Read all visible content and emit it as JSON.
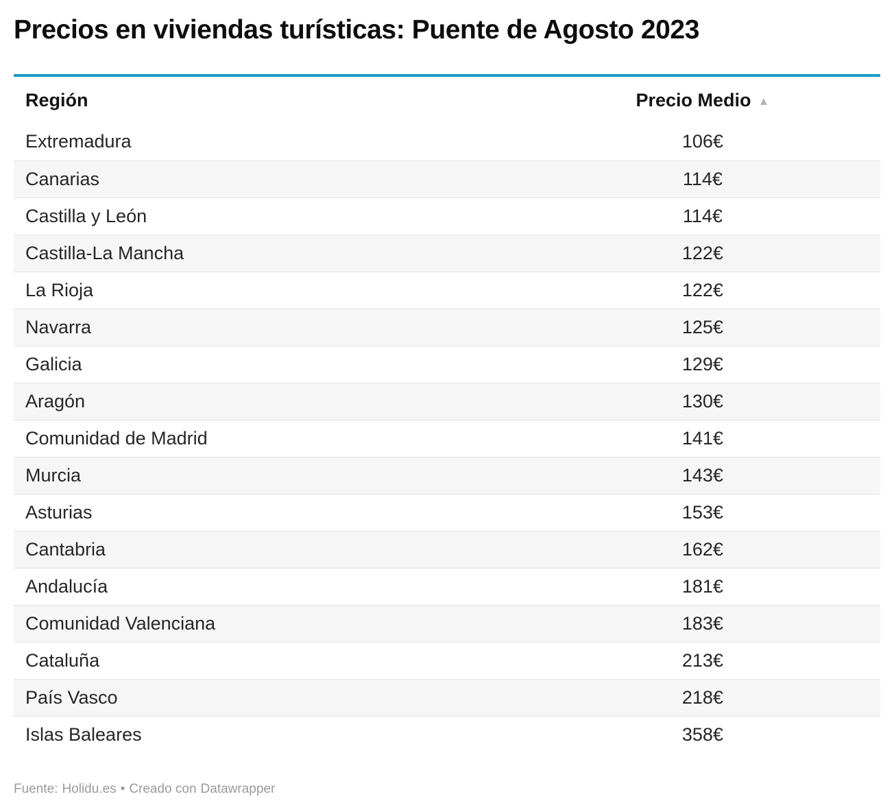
{
  "title": "Precios en viviendas turísticas: Puente de Agosto 2023",
  "colors": {
    "accent_rule": "#1a9bc8",
    "stripe": "#f6f6f6",
    "row_border": "#e3e3e3",
    "text": "#262626",
    "muted": "#9b9b9b"
  },
  "table": {
    "columns": [
      {
        "label": "Región"
      },
      {
        "label": "Precio Medio"
      }
    ],
    "sort_icon": "▲",
    "rows": [
      {
        "region": "Extremadura",
        "price": "106€"
      },
      {
        "region": "Canarias",
        "price": "114€"
      },
      {
        "region": "Castilla y León",
        "price": "114€"
      },
      {
        "region": "Castilla-La Mancha",
        "price": "122€"
      },
      {
        "region": "La Rioja",
        "price": "122€"
      },
      {
        "region": "Navarra",
        "price": "125€"
      },
      {
        "region": "Galicia",
        "price": "129€"
      },
      {
        "region": "Aragón",
        "price": "130€"
      },
      {
        "region": "Comunidad de Madrid",
        "price": "141€"
      },
      {
        "region": "Murcia",
        "price": "143€"
      },
      {
        "region": "Asturias",
        "price": "153€"
      },
      {
        "region": "Cantabria",
        "price": "162€"
      },
      {
        "region": "Andalucía",
        "price": "181€"
      },
      {
        "region": "Comunidad Valenciana",
        "price": "183€"
      },
      {
        "region": "Cataluña",
        "price": "213€"
      },
      {
        "region": "País Vasco",
        "price": "218€"
      },
      {
        "region": "Islas Baleares",
        "price": "358€"
      }
    ]
  },
  "footer": {
    "source_label": "Fuente:",
    "source_link": "Holidu.es",
    "separator": "•",
    "attribution_prefix": "Creado con",
    "attribution_link": "Datawrapper"
  },
  "chart_data": {
    "type": "table",
    "title": "Precios en viviendas turísticas: Puente de Agosto 2023",
    "columns": [
      "Región",
      "Precio Medio"
    ],
    "unit": "€",
    "sort": "ascending by Precio Medio",
    "rows": [
      [
        "Extremadura",
        106
      ],
      [
        "Canarias",
        114
      ],
      [
        "Castilla y León",
        114
      ],
      [
        "Castilla-La Mancha",
        122
      ],
      [
        "La Rioja",
        122
      ],
      [
        "Navarra",
        125
      ],
      [
        "Galicia",
        129
      ],
      [
        "Aragón",
        130
      ],
      [
        "Comunidad de Madrid",
        141
      ],
      [
        "Murcia",
        143
      ],
      [
        "Asturias",
        153
      ],
      [
        "Cantabria",
        162
      ],
      [
        "Andalucía",
        181
      ],
      [
        "Comunidad Valenciana",
        183
      ],
      [
        "Cataluña",
        213
      ],
      [
        "País Vasco",
        218
      ],
      [
        "Islas Baleares",
        358
      ]
    ],
    "source": "Holidu.es"
  }
}
